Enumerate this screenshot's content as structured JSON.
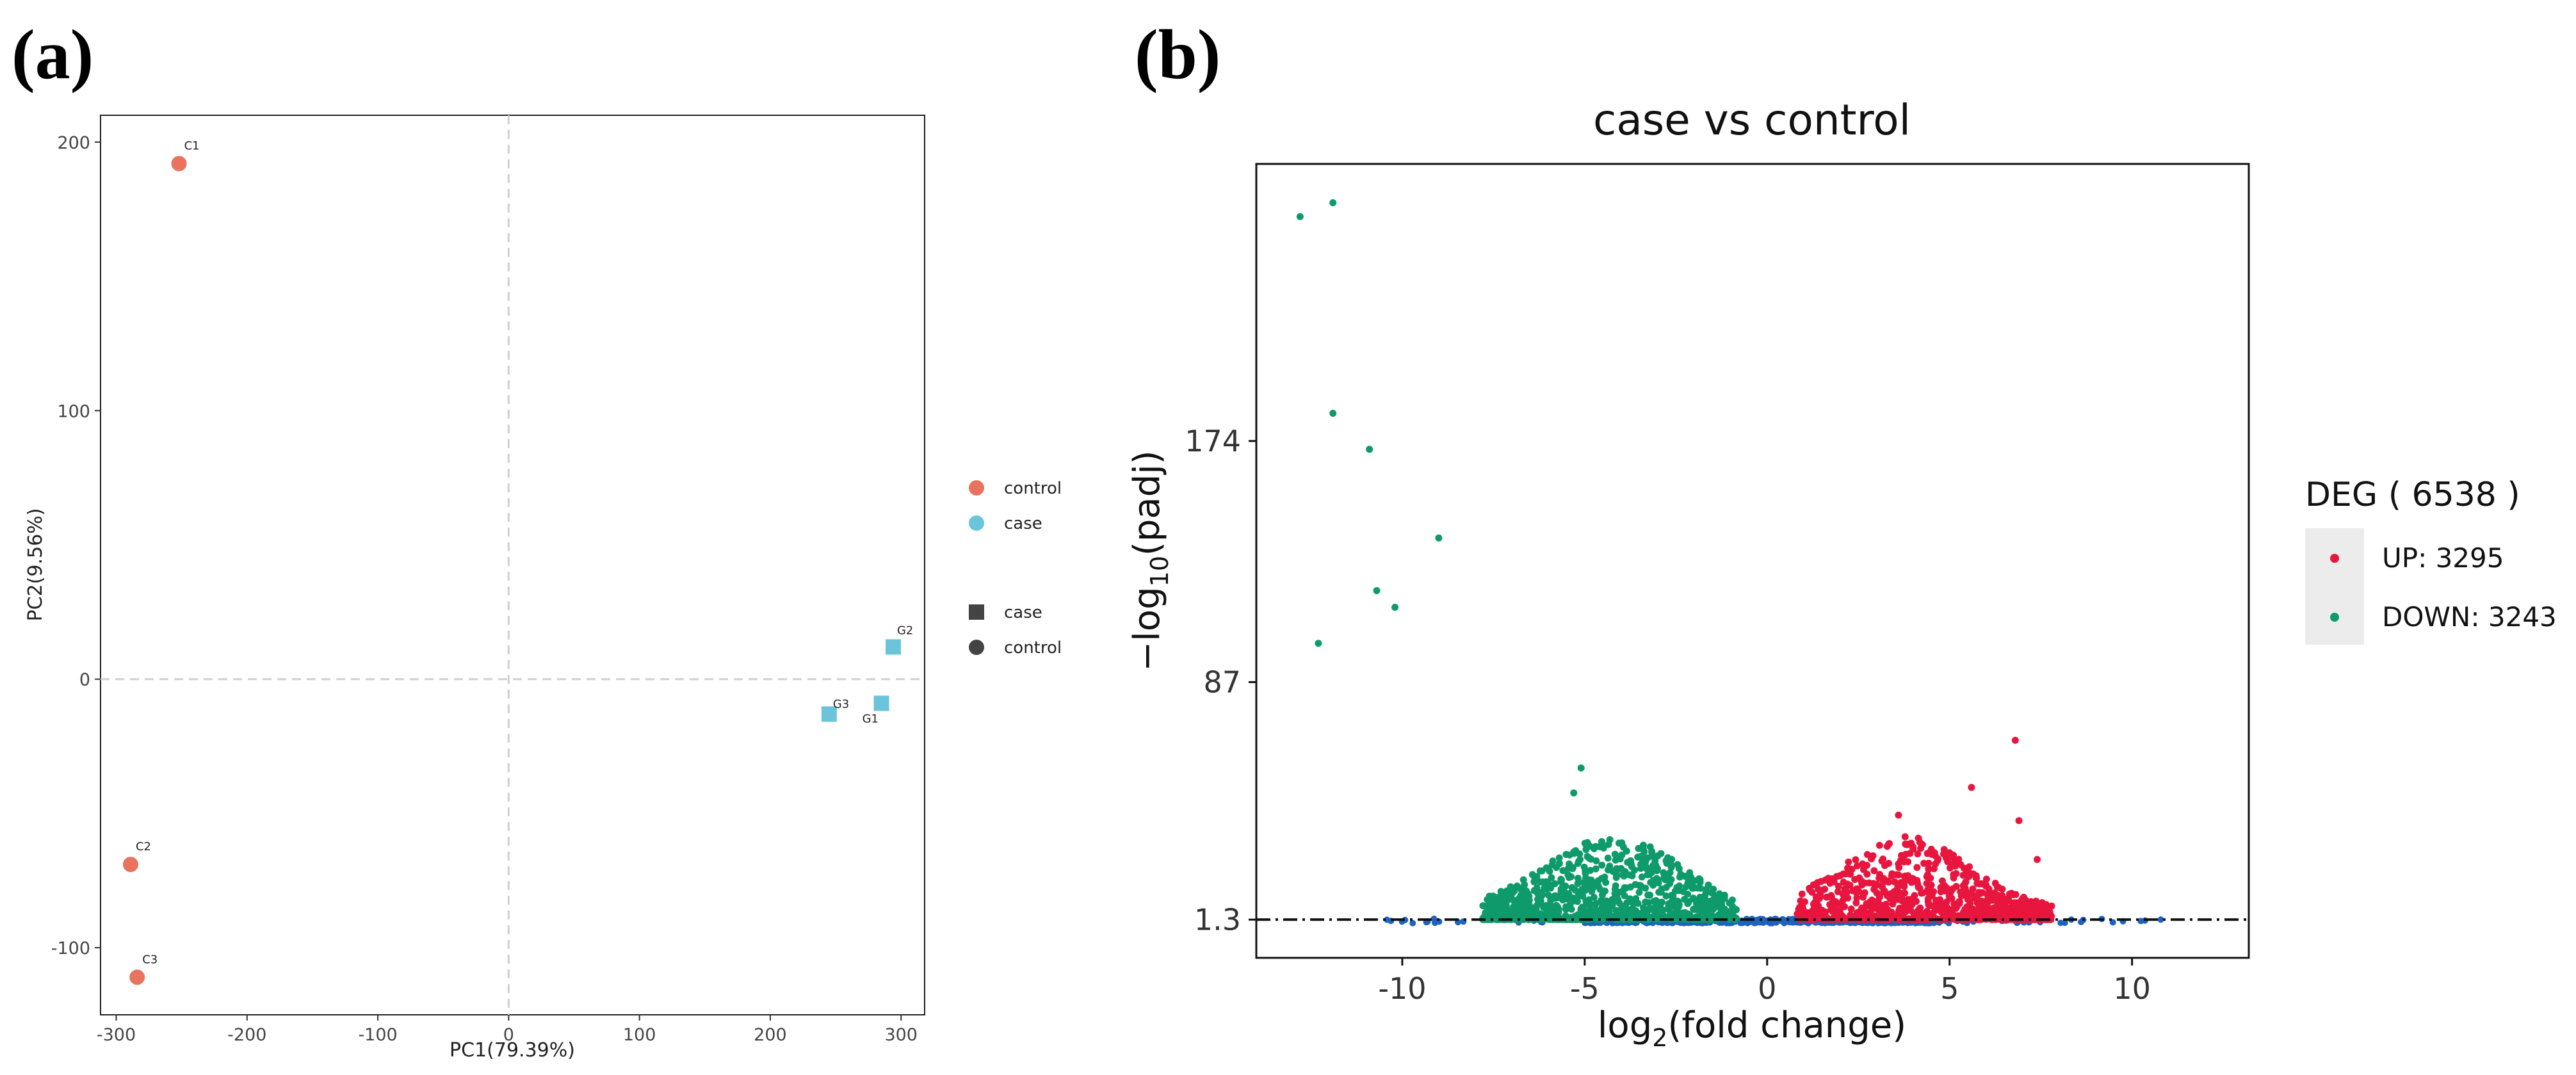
{
  "panels": {
    "a_label": "(a)",
    "b_label": "(b)"
  },
  "chart_data": [
    {
      "type": "scatter",
      "title": "",
      "xlabel": "PC1(79.39%)",
      "ylabel": "PC2(9.56%)",
      "xlim": [
        -312,
        318
      ],
      "ylim": [
        -125,
        210
      ],
      "xticks": [
        -300,
        -200,
        -100,
        0,
        100,
        200,
        300
      ],
      "yticks": [
        -100,
        0,
        100,
        200
      ],
      "grid": false,
      "reference_lines": [
        "x=0 dashed",
        "y=0 dashed"
      ],
      "legend_position": "right",
      "legend_color": [
        {
          "label": "control",
          "color": "#E8735F"
        },
        {
          "label": "case",
          "color": "#6CC4DA"
        }
      ],
      "legend_shape": [
        {
          "label": "case",
          "shape": "square"
        },
        {
          "label": "control",
          "shape": "circle"
        }
      ],
      "points": [
        {
          "label": "C1",
          "x": -252,
          "y": 192,
          "group": "control",
          "shape": "circle"
        },
        {
          "label": "C2",
          "x": -289,
          "y": -69,
          "group": "control",
          "shape": "circle"
        },
        {
          "label": "C3",
          "x": -284,
          "y": -111,
          "group": "control",
          "shape": "circle"
        },
        {
          "label": "G1",
          "x": 285,
          "y": -9,
          "group": "case",
          "shape": "square"
        },
        {
          "label": "G2",
          "x": 294,
          "y": 12,
          "group": "case",
          "shape": "square"
        },
        {
          "label": "G3",
          "x": 245,
          "y": -13,
          "group": "case",
          "shape": "square"
        }
      ]
    },
    {
      "type": "scatter",
      "title": "case vs control",
      "xlabel": "log2(fold change)",
      "ylabel": "-log10(padj)",
      "xlim": [
        -14,
        13.2
      ],
      "ylim": [
        -12.5,
        274
      ],
      "xticks": [
        -10,
        -5,
        0,
        5,
        10
      ],
      "yticks": [
        1.3,
        87,
        174
      ],
      "threshold_line": 1.3,
      "grid": false,
      "legend_position": "right",
      "legend_title": "DEG ( 6538 )",
      "legend": [
        {
          "label": "UP: 3295",
          "color": "#E8163E"
        },
        {
          "label": "DOWN: 3243",
          "color": "#0E9A6A"
        }
      ],
      "ns_color": "#1F63C0",
      "highlighted_points_down": [
        [
          -12.8,
          255
        ],
        [
          -11.9,
          260
        ],
        [
          -11.9,
          184
        ],
        [
          -10.9,
          171
        ],
        [
          -9.0,
          139
        ],
        [
          -10.7,
          120
        ],
        [
          -10.2,
          114
        ],
        [
          -12.3,
          101
        ],
        [
          -5.1,
          56
        ],
        [
          -5.3,
          47
        ]
      ],
      "highlighted_points_up": [
        [
          6.8,
          66
        ],
        [
          5.6,
          49
        ],
        [
          3.6,
          39
        ],
        [
          6.9,
          37
        ],
        [
          7.4,
          23
        ]
      ]
    }
  ]
}
